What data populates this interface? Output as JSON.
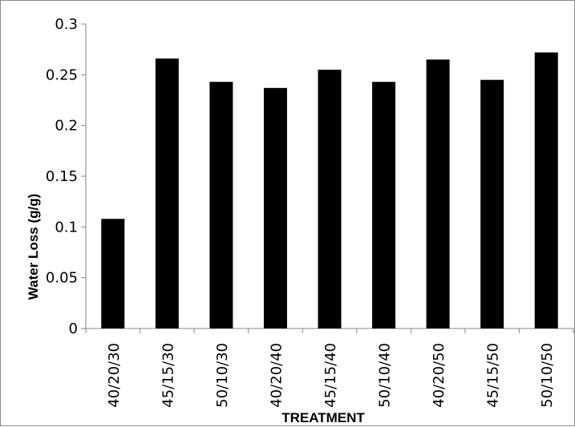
{
  "chart_data": {
    "type": "bar",
    "categories": [
      "40/20/30",
      "45/15/30",
      "50/10/30",
      "40/20/40",
      "45/15/40",
      "50/10/40",
      "40/20/50",
      "45/15/50",
      "50/10/50"
    ],
    "values": [
      0.108,
      0.266,
      0.243,
      0.237,
      0.255,
      0.243,
      0.265,
      0.245,
      0.272
    ],
    "yticks": [
      "0",
      "0.05",
      "0.1",
      "0.15",
      "0.2",
      "0.25",
      "0.3"
    ],
    "ylim": [
      0,
      0.3
    ],
    "xlabel": "TREATMENT",
    "ylabel": "Water Loss (g/g)",
    "bar_color": "#000000",
    "axis_color": "#868686",
    "grid": false,
    "legend": "none"
  }
}
